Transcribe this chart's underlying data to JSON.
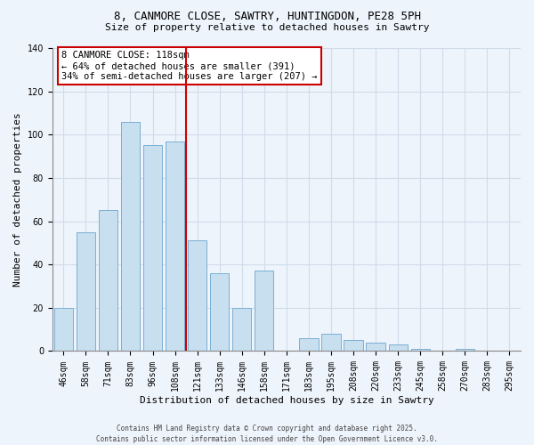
{
  "title_line1": "8, CANMORE CLOSE, SAWTRY, HUNTINGDON, PE28 5PH",
  "title_line2": "Size of property relative to detached houses in Sawtry",
  "xlabel": "Distribution of detached houses by size in Sawtry",
  "ylabel": "Number of detached properties",
  "bar_labels": [
    "46sqm",
    "58sqm",
    "71sqm",
    "83sqm",
    "96sqm",
    "108sqm",
    "121sqm",
    "133sqm",
    "146sqm",
    "158sqm",
    "171sqm",
    "183sqm",
    "195sqm",
    "208sqm",
    "220sqm",
    "233sqm",
    "245sqm",
    "258sqm",
    "270sqm",
    "283sqm",
    "295sqm"
  ],
  "bar_values": [
    20,
    55,
    65,
    106,
    95,
    97,
    51,
    36,
    20,
    37,
    0,
    6,
    8,
    5,
    4,
    3,
    1,
    0,
    1,
    0,
    0
  ],
  "bar_color": "#c8dff0",
  "bar_edge_color": "#7bafd4",
  "vline_x_index": 5.5,
  "vline_color": "#cc0000",
  "annotation_line1": "8 CANMORE CLOSE: 118sqm",
  "annotation_line2": "← 64% of detached houses are smaller (391)",
  "annotation_line3": "34% of semi-detached houses are larger (207) →",
  "ylim": [
    0,
    140
  ],
  "yticks": [
    0,
    20,
    40,
    60,
    80,
    100,
    120,
    140
  ],
  "footer_line1": "Contains HM Land Registry data © Crown copyright and database right 2025.",
  "footer_line2": "Contains public sector information licensed under the Open Government Licence v3.0.",
  "background_color": "#eef4fb",
  "grid_color": "#d0dcea",
  "title_fontsize": 9,
  "subtitle_fontsize": 8,
  "axis_label_fontsize": 8,
  "tick_fontsize": 7,
  "annotation_fontsize": 7.5,
  "footer_fontsize": 5.5
}
